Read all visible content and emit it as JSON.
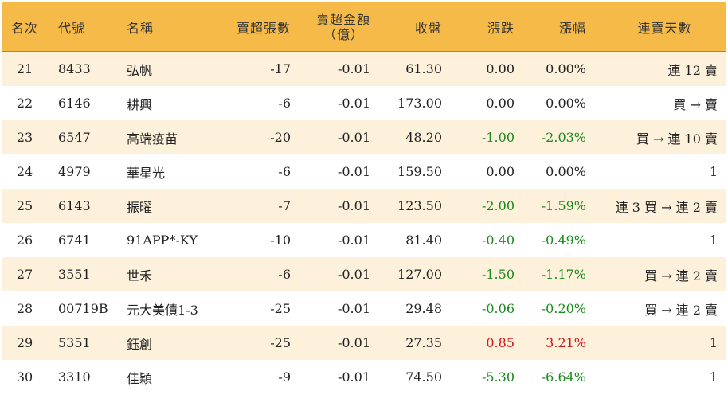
{
  "headers": {
    "rank": "名次",
    "code": "代號",
    "name": "名稱",
    "sell_lots": "賣超張數",
    "sell_amount_line1": "賣超金額",
    "sell_amount_line2": "（億）",
    "close": "收盤",
    "change": "漲跌",
    "change_pct": "漲幅",
    "streak": "連賣天數"
  },
  "rows": [
    {
      "rank": "21",
      "code": "8433",
      "name": "弘帆",
      "sell_lots": "-17",
      "sell_amount": "-0.01",
      "close": "61.30",
      "change": "0.00",
      "change_pct": "0.00%",
      "streak": "連 12 賣",
      "trend": "neutral"
    },
    {
      "rank": "22",
      "code": "6146",
      "name": "耕興",
      "sell_lots": "-6",
      "sell_amount": "-0.01",
      "close": "173.00",
      "change": "0.00",
      "change_pct": "0.00%",
      "streak": "買 → 賣",
      "trend": "neutral"
    },
    {
      "rank": "23",
      "code": "6547",
      "name": "高端疫苗",
      "sell_lots": "-20",
      "sell_amount": "-0.01",
      "close": "48.20",
      "change": "-1.00",
      "change_pct": "-2.03%",
      "streak": "買 → 連 10 賣",
      "trend": "neg"
    },
    {
      "rank": "24",
      "code": "4979",
      "name": "華星光",
      "sell_lots": "-6",
      "sell_amount": "-0.01",
      "close": "159.50",
      "change": "0.00",
      "change_pct": "0.00%",
      "streak": "1",
      "trend": "neutral"
    },
    {
      "rank": "25",
      "code": "6143",
      "name": "振曜",
      "sell_lots": "-7",
      "sell_amount": "-0.01",
      "close": "123.50",
      "change": "-2.00",
      "change_pct": "-1.59%",
      "streak": "連 3 買 → 連 2 賣",
      "trend": "neg"
    },
    {
      "rank": "26",
      "code": "6741",
      "name": "91APP*-KY",
      "sell_lots": "-10",
      "sell_amount": "-0.01",
      "close": "81.40",
      "change": "-0.40",
      "change_pct": "-0.49%",
      "streak": "1",
      "trend": "neg"
    },
    {
      "rank": "27",
      "code": "3551",
      "name": "世禾",
      "sell_lots": "-6",
      "sell_amount": "-0.01",
      "close": "127.00",
      "change": "-1.50",
      "change_pct": "-1.17%",
      "streak": "買 → 連 2 賣",
      "trend": "neg"
    },
    {
      "rank": "28",
      "code": "00719B",
      "name": "元大美債1-3",
      "sell_lots": "-25",
      "sell_amount": "-0.01",
      "close": "29.48",
      "change": "-0.06",
      "change_pct": "-0.20%",
      "streak": "買 → 連 2 賣",
      "trend": "neg"
    },
    {
      "rank": "29",
      "code": "5351",
      "name": "鈺創",
      "sell_lots": "-25",
      "sell_amount": "-0.01",
      "close": "27.35",
      "change": "0.85",
      "change_pct": "3.21%",
      "streak": "1",
      "trend": "pos"
    },
    {
      "rank": "30",
      "code": "3310",
      "name": "佳穎",
      "sell_lots": "-9",
      "sell_amount": "-0.01",
      "close": "74.50",
      "change": "-5.30",
      "change_pct": "-6.64%",
      "streak": "1",
      "trend": "neg"
    }
  ],
  "colors": {
    "header_bg": "#f5ba48",
    "odd_row_bg": "#fdf1dc",
    "even_row_bg": "#ffffff",
    "up": "#d61616",
    "down": "#1a8a1a"
  }
}
